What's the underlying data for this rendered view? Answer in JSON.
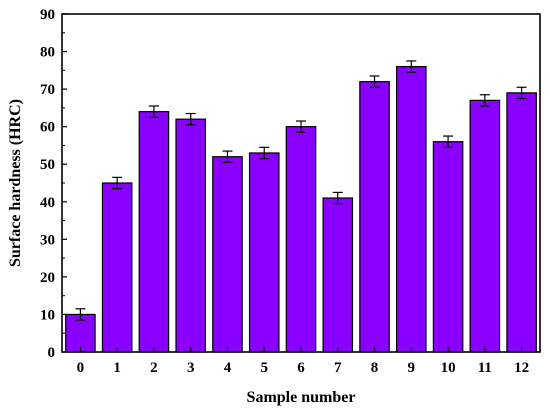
{
  "chart_data": {
    "type": "bar",
    "categories": [
      "0",
      "1",
      "2",
      "3",
      "4",
      "5",
      "6",
      "7",
      "8",
      "9",
      "10",
      "11",
      "12"
    ],
    "values": [
      10,
      45,
      64,
      62,
      52,
      53,
      60,
      41,
      72,
      76,
      56,
      67,
      69
    ],
    "errors": [
      1.5,
      1.5,
      1.5,
      1.5,
      1.5,
      1.5,
      1.5,
      1.5,
      1.5,
      1.5,
      1.5,
      1.5,
      1.5
    ],
    "title": "",
    "xlabel": "Sample number",
    "ylabel": "Surface hardness (HRC)",
    "ylim": [
      0,
      90
    ],
    "yticks": [
      0,
      10,
      20,
      30,
      40,
      50,
      60,
      70,
      80,
      90
    ],
    "grid": false,
    "bar_color": "#8a00ff",
    "bar_edge_color": "#000000"
  }
}
